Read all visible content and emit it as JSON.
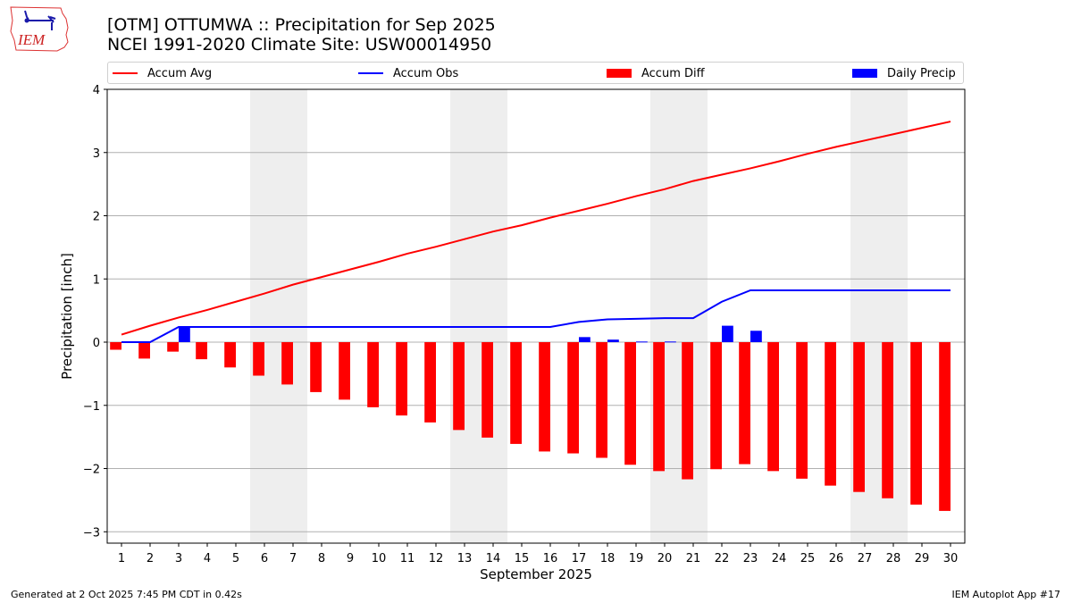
{
  "header": {
    "title_line1": "[OTM] OTTUMWA :: Precipitation for Sep 2025",
    "title_line2": "NCEI 1991-2020 Climate Site: USW00014950",
    "logo_text": "IEM"
  },
  "footer": {
    "left": "Generated at 2 Oct 2025 7:45 PM CDT in 0.42s",
    "right": "IEM Autoplot App #17"
  },
  "colors": {
    "accum_avg": "#ff0000",
    "accum_obs": "#0000ff",
    "accum_diff": "#ff0000",
    "daily_precip": "#0000ff",
    "weekend_shade": "#eeeeee",
    "grid": "#b0b0b0"
  },
  "chart_data": {
    "type": "bar",
    "title": "[OTM] OTTUMWA :: Precipitation for Sep 2025",
    "subtitle": "NCEI 1991-2020 Climate Site: USW00014950",
    "xlabel": "September 2025",
    "ylabel": "Precipitation [inch]",
    "xlim": [
      0.5,
      30.5
    ],
    "ylim": [
      -3.18,
      4
    ],
    "yticks": [
      -3,
      -2,
      -1,
      0,
      1,
      2,
      3,
      4
    ],
    "ytick_labels": [
      "−3",
      "−2",
      "−1",
      "0",
      "1",
      "2",
      "3",
      "4"
    ],
    "grid": "horizontal",
    "legend_position": "top",
    "legend": [
      "Accum Avg",
      "Accum Obs",
      "Accum Diff",
      "Daily Precip"
    ],
    "weekend_spans": [
      [
        5.5,
        7.5
      ],
      [
        12.5,
        14.5
      ],
      [
        19.5,
        21.5
      ],
      [
        26.5,
        28.5
      ]
    ],
    "x": [
      1,
      2,
      3,
      4,
      5,
      6,
      7,
      8,
      9,
      10,
      11,
      12,
      13,
      14,
      15,
      16,
      17,
      18,
      19,
      20,
      21,
      22,
      23,
      24,
      25,
      26,
      27,
      28,
      29,
      30
    ],
    "series": [
      {
        "name": "Accum Avg",
        "kind": "line",
        "values": [
          0.12,
          0.26,
          0.39,
          0.51,
          0.64,
          0.77,
          0.91,
          1.03,
          1.15,
          1.27,
          1.4,
          1.51,
          1.63,
          1.75,
          1.85,
          1.97,
          2.08,
          2.19,
          2.31,
          2.42,
          2.55,
          2.65,
          2.75,
          2.86,
          2.98,
          3.09,
          3.19,
          3.29,
          3.39,
          3.49
        ]
      },
      {
        "name": "Accum Obs",
        "kind": "line",
        "values": [
          0.0,
          0.0,
          0.24,
          0.24,
          0.24,
          0.24,
          0.24,
          0.24,
          0.24,
          0.24,
          0.24,
          0.24,
          0.24,
          0.24,
          0.24,
          0.24,
          0.32,
          0.36,
          0.37,
          0.38,
          0.38,
          0.64,
          0.82,
          0.82,
          0.82,
          0.82,
          0.82,
          0.82,
          0.82,
          0.82
        ]
      },
      {
        "name": "Accum Diff",
        "kind": "bar",
        "values": [
          -0.12,
          -0.26,
          -0.15,
          -0.27,
          -0.4,
          -0.53,
          -0.67,
          -0.79,
          -0.91,
          -1.03,
          -1.16,
          -1.27,
          -1.39,
          -1.51,
          -1.61,
          -1.73,
          -1.76,
          -1.83,
          -1.94,
          -2.04,
          -2.17,
          -2.01,
          -1.93,
          -2.04,
          -2.16,
          -2.27,
          -2.37,
          -2.47,
          -2.57,
          -2.67
        ]
      },
      {
        "name": "Daily Precip",
        "kind": "bar",
        "values": [
          0,
          0,
          0.24,
          0,
          0,
          0,
          0,
          0,
          0,
          0,
          0,
          0,
          0,
          0,
          0,
          0,
          0.08,
          0.04,
          0.01,
          0.01,
          0,
          0.26,
          0.18,
          0,
          0,
          0,
          0,
          0,
          0,
          0
        ]
      }
    ]
  }
}
